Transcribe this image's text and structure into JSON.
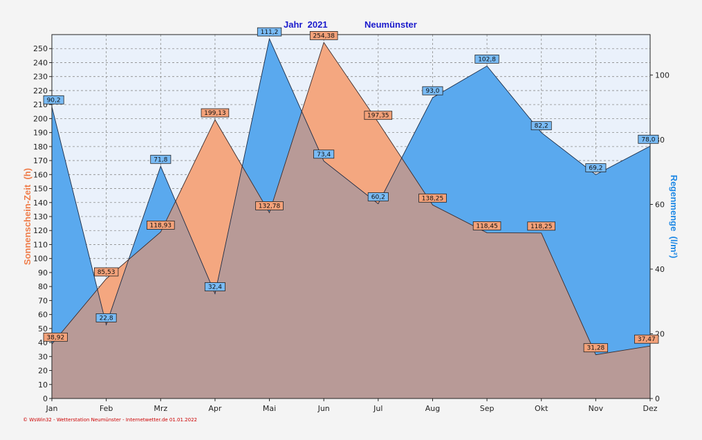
{
  "chart_data": {
    "type": "area",
    "title_year": "Jahr  2021",
    "title_station": "Neumünster",
    "categories": [
      "Jan",
      "Feb",
      "Mrz",
      "Apr",
      "Mai",
      "Jun",
      "Jul",
      "Aug",
      "Sep",
      "Okt",
      "Nov",
      "Dez"
    ],
    "series": [
      {
        "name": "Sonnenschein-Zeit",
        "axis": "left",
        "color": "#f4a780",
        "label_color": "#f4a27a",
        "values": [
          38.92,
          85.53,
          118.93,
          199.13,
          132.78,
          254.38,
          197.35,
          138.25,
          118.45,
          118.25,
          31.28,
          37.47
        ],
        "labels": [
          "38,92",
          "85,53",
          "118,93",
          "199,13",
          "132,78",
          "254,38",
          "197,35",
          "138,25",
          "118,45",
          "118,25",
          "31,28",
          "37,47"
        ]
      },
      {
        "name": "Regenmenge",
        "axis": "right",
        "color": "#5aa9ee",
        "label_color": "#79bbf5",
        "values": [
          90.2,
          22.8,
          71.8,
          32.4,
          111.2,
          73.4,
          60.2,
          93.0,
          102.8,
          82.2,
          69.2,
          78.0
        ],
        "labels": [
          "90,2",
          "22,8",
          "71,8",
          "32,4",
          "111,2",
          "73,4",
          "60,2",
          "93,0",
          "102,8",
          "82,2",
          "69,2",
          "78,0"
        ]
      }
    ],
    "ylabel_left": "Sonnenschein-Zeit  (h)",
    "ylabel_right": "Regenmenge  (l/m²)",
    "ylim_left": [
      0,
      260
    ],
    "yticks_left": [
      0,
      10,
      20,
      30,
      40,
      50,
      60,
      70,
      80,
      90,
      100,
      110,
      120,
      130,
      140,
      150,
      160,
      170,
      180,
      190,
      200,
      210,
      220,
      230,
      240,
      250
    ],
    "ylim_right": [
      0,
      112.5
    ],
    "yticks_right": [
      0,
      20,
      40,
      60,
      80,
      100
    ],
    "overlap_color": "#b89a97",
    "grid": true,
    "footer": "© WsWin32 - Wetterstation Neumünster - Internetwetter.de  01.01.2022"
  }
}
